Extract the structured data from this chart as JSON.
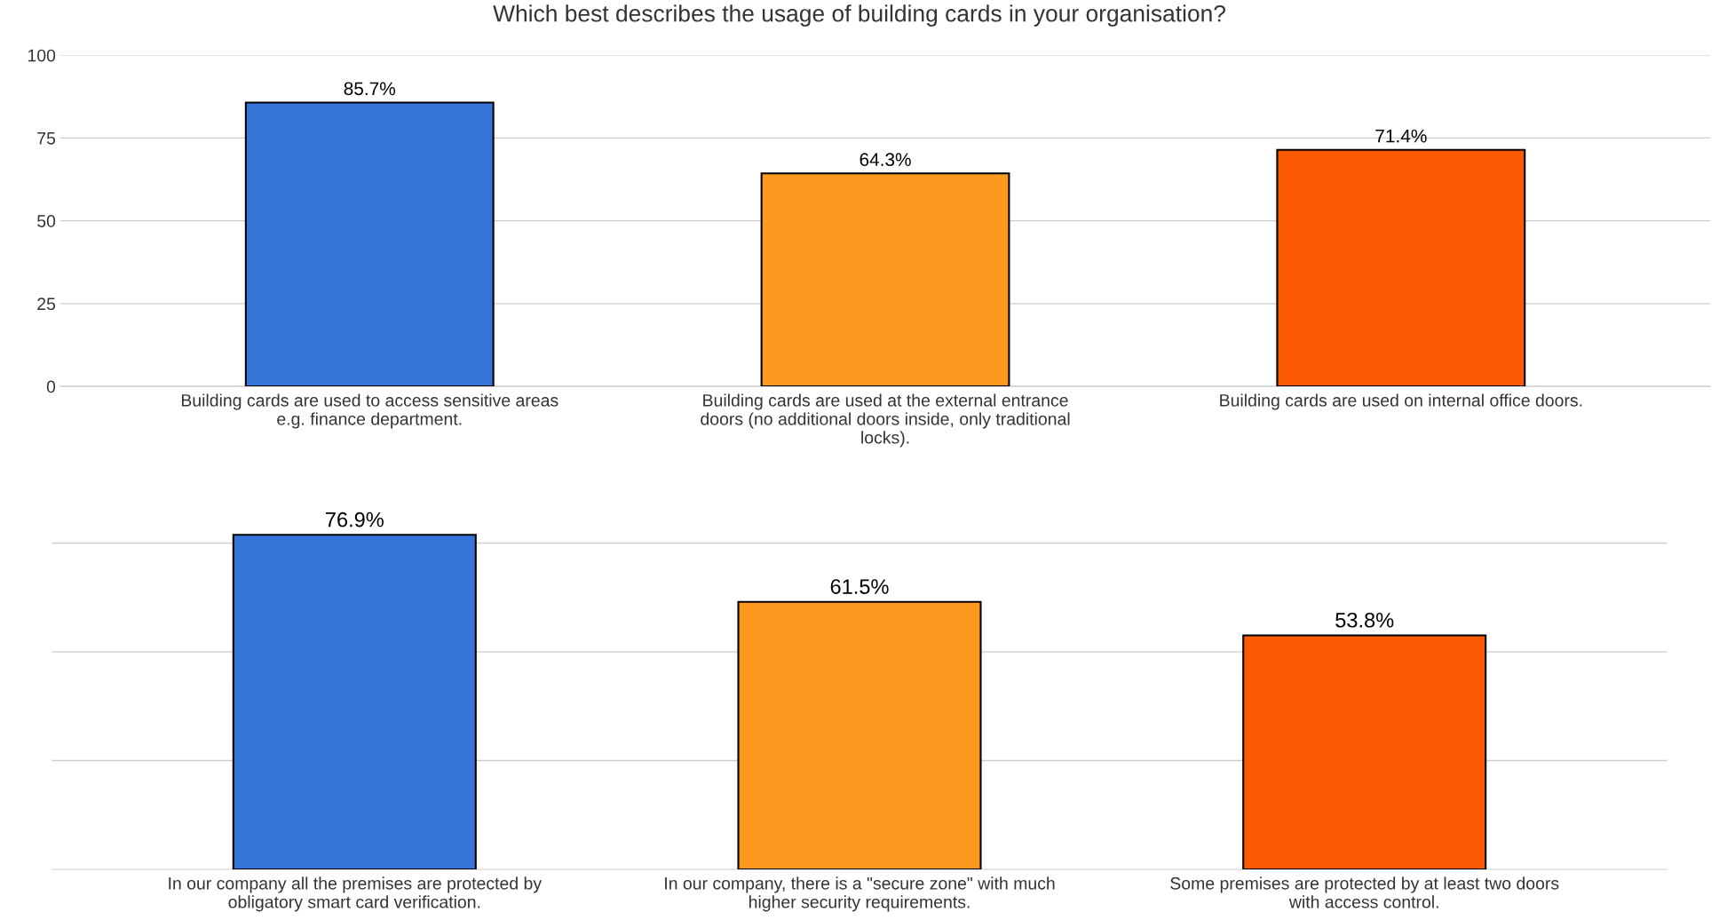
{
  "chart_data": [
    {
      "type": "bar",
      "title": "Which best describes the usage of building cards in your organisation?",
      "categories": [
        "Building cards are used to access sensitive areas\ne.g. finance department.",
        "Building cards are used at the external entrance\ndoors (no additional doors inside, only traditional\nlocks).",
        "Building cards are used on internal office doors."
      ],
      "values": [
        85.7,
        64.3,
        71.4
      ],
      "colors": [
        "#3674d9",
        "#fb9a1f",
        "#fd5a05"
      ],
      "value_labels": [
        "85.7%",
        "64.3%",
        "71.4%"
      ],
      "ylim": [
        0,
        100
      ],
      "yticks": [
        0,
        25,
        50,
        75,
        100
      ],
      "grid": "y"
    },
    {
      "type": "bar",
      "categories": [
        "In our company all the premises are protected by\nobligatory smart card verification.",
        "In our company, there is a \"secure zone\" with much\nhigher security requirements.",
        "Some premises are protected by at least two doors\nwith access control."
      ],
      "values": [
        76.9,
        61.5,
        53.8
      ],
      "colors": [
        "#3674d9",
        "#fb9a1f",
        "#fd5a05"
      ],
      "value_labels": [
        "76.9%",
        "61.5%",
        "53.8%"
      ],
      "yticks": [
        {
          "value": 25,
          "label": null
        },
        {
          "value": 50,
          "label": null
        },
        {
          "value": 75,
          "label": null
        }
      ],
      "grid": "y",
      "tick_labels": "x"
    }
  ]
}
